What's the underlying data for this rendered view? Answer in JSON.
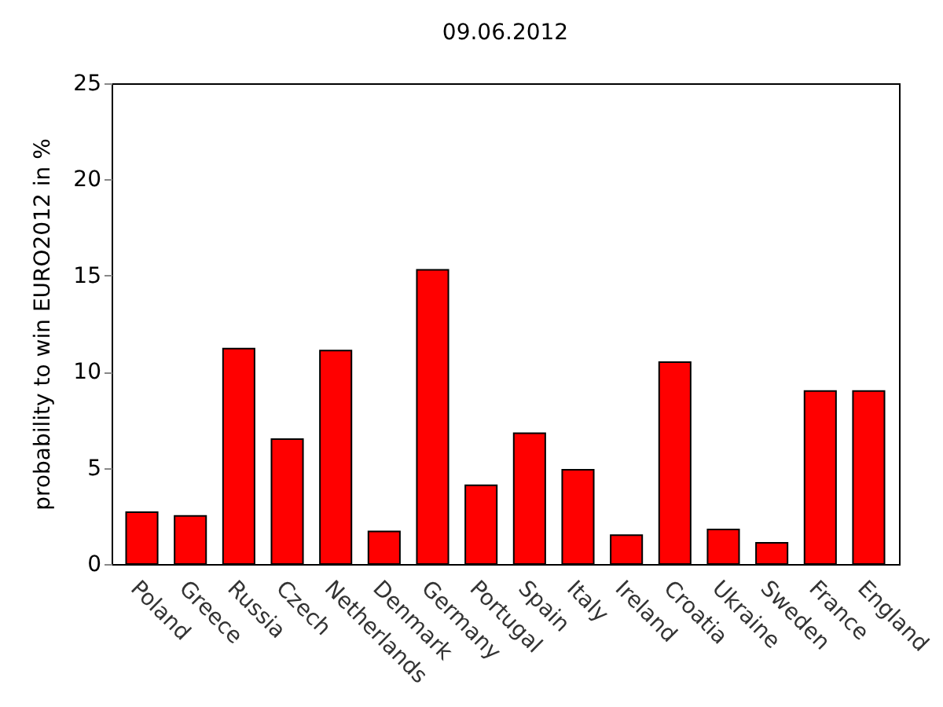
{
  "chart_data": {
    "type": "bar",
    "title": "09.06.2012",
    "ylabel": "probability to win EURO2012 in %",
    "categories": [
      "Poland",
      "Greece",
      "Russia",
      "Czech",
      "Netherlands",
      "Denmark",
      "Germany",
      "Portugal",
      "Spain",
      "Italy",
      "Ireland",
      "Croatia",
      "Ukraine",
      "Sweden",
      "France",
      "England"
    ],
    "values": [
      2.7,
      2.5,
      11.2,
      6.5,
      11.1,
      1.7,
      15.3,
      4.1,
      6.8,
      4.9,
      1.5,
      10.5,
      1.8,
      1.1,
      9.0,
      9.0
    ],
    "color": "#ff0000",
    "ylim": [
      0,
      25
    ],
    "yticks": [
      0,
      5,
      10,
      15,
      20,
      25
    ],
    "grid": false
  }
}
